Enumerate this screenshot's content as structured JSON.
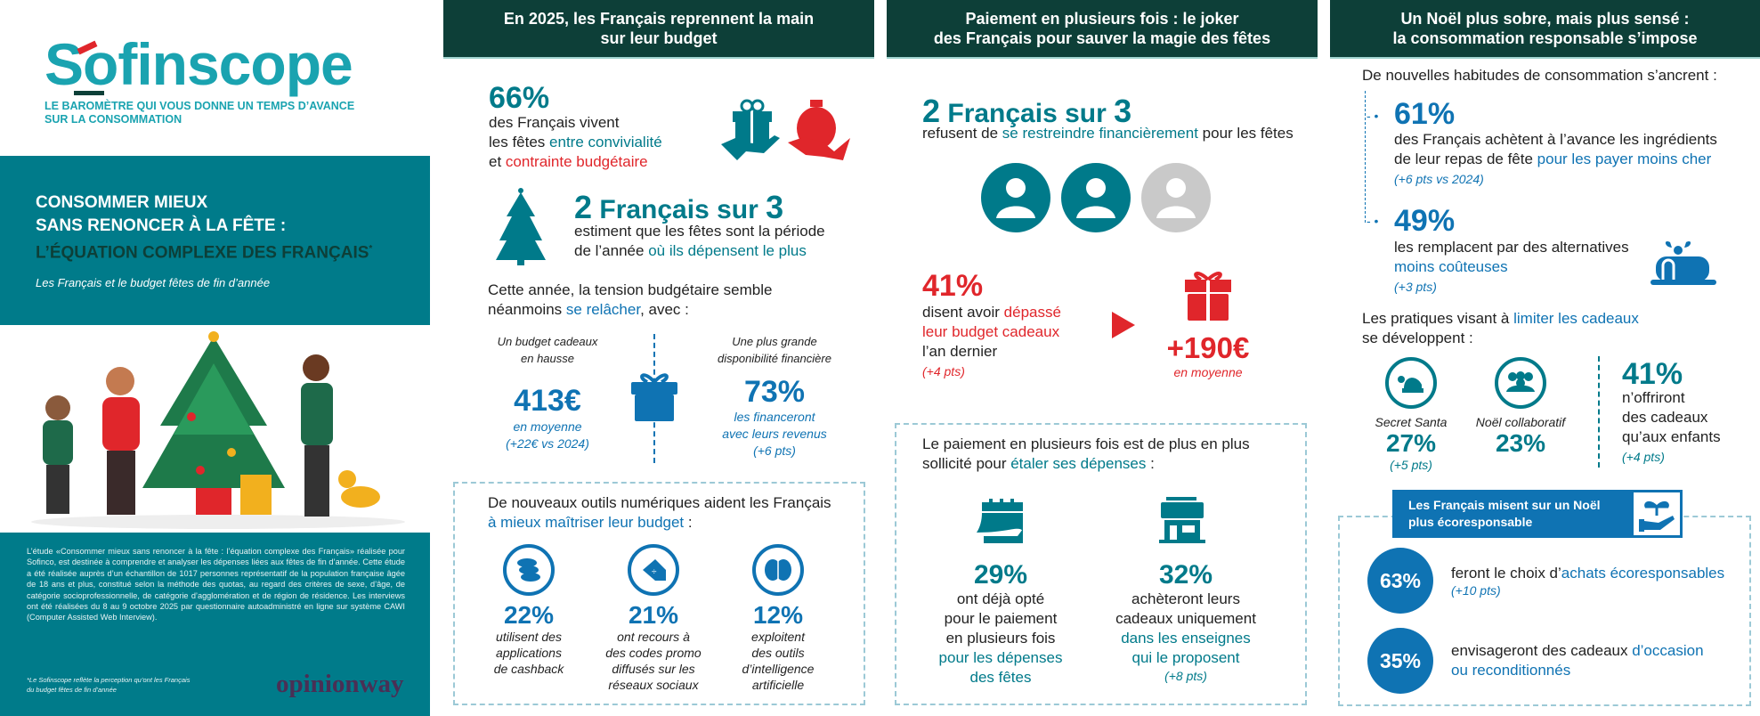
{
  "colors": {
    "dark_green": "#0d3f38",
    "teal": "#007a8a",
    "blue": "#0f73b3",
    "red": "#e0262b",
    "grey": "#c9c9c9",
    "opinionway": "#4a2f55"
  },
  "left": {
    "logo": "Sofinscope",
    "tagline": [
      "LE BAROMÈTRE QUI VOUS DONNE UN TEMPS D’AVANCE",
      "SUR LA CONSOMMATION"
    ],
    "title": [
      "CONSOMMER MIEUX",
      "SANS RENONCER À LA FÊTE :",
      "L’ÉQUATION COMPLEXE DES FRANÇAIS"
    ],
    "title_asterisk": "*",
    "subtitle": "Les Français et le budget fêtes de fin d’année",
    "method": "L’étude «Consommer mieux sans renoncer à la fête : l’équation complexe des Français» réalisée pour Sofinco, est destinée à comprendre et analyser les dépenses liées aux fêtes de fin d’année. Cette étude a été réalisée auprès d’un échantillon de 1017 personnes représentatif de la population française âgée de 18 ans et plus, constitué selon la méthode des quotas, au regard des critères de sexe, d’âge, de catégorie socioprofessionnelle, de catégorie d’agglomération et de région de résidence. Les interviews ont été réalisées du 8 au 9 octobre 2025 par questionnaire autoadministré en ligne sur système CAWI (Computer Assisted Web Interview).",
    "footnote": [
      "*Le Sofinscope reflète la perception qu’ont les Français",
      "du budget fêtes de fin d’année"
    ],
    "partner_logo": "opinionway"
  },
  "col2": {
    "header": [
      "En 2025, les Français reprennent la main",
      "sur leur budget"
    ],
    "s1": {
      "value": "66%",
      "l1": "des Français vivent",
      "l2a": "les fêtes ",
      "l2b": "entre convivialité",
      "l3a": "et ",
      "l3b": "contrainte budgétaire"
    },
    "s2": {
      "value_a": "2",
      "value_b": " Français sur ",
      "value_c": "3",
      "l1": "estiment que les fêtes sont la période",
      "l2a": "de l’année ",
      "l2b": "où ils dépensent le plus"
    },
    "intro": {
      "l1": "Cette année, la tension budgétaire semble",
      "l2a": "néanmoins ",
      "l2b": "se relâcher",
      "l2c": ", avec :"
    },
    "budget": {
      "label": [
        "Un budget cadeaux",
        "en hausse"
      ],
      "value": "413€",
      "desc": [
        "en moyenne",
        "(+22€ vs 2024)"
      ]
    },
    "dispo": {
      "label": [
        "Une plus grande",
        "disponibilité financière"
      ],
      "value": "73%",
      "desc": [
        "les financeront",
        "avec leurs revenus",
        "(+6 pts)"
      ]
    },
    "tools": {
      "title_a": "De nouveaux outils numériques aident les Français",
      "title_b": "à mieux maîtriser leur budget",
      "title_c": " :",
      "items": [
        {
          "icon": "coins-icon",
          "value": "22%",
          "desc": [
            "utilisent des",
            "applications",
            "de cashback"
          ]
        },
        {
          "icon": "promo-tag-icon",
          "value": "21%",
          "desc": [
            "ont recours à",
            "des codes promo",
            "diffusés sur les",
            "réseaux sociaux"
          ]
        },
        {
          "icon": "ai-brain-icon",
          "value": "12%",
          "desc": [
            "exploitent",
            "des outils",
            "d’intelligence",
            "artificielle"
          ]
        }
      ]
    }
  },
  "col3": {
    "header": [
      "Paiement en plusieurs fois : le joker",
      "des Français pour sauver la magie des fêtes"
    ],
    "s1": {
      "value_a": "2",
      "value_b": " Français sur ",
      "value_c": "3",
      "la": "refusent de ",
      "lb": "se restreindre financièrement",
      "lc": " pour les fêtes",
      "people_filled": 2,
      "people_total": 3
    },
    "s2": {
      "value": "41%",
      "l1a": "disent avoir ",
      "l1b": "dépassé",
      "l2": "leur budget cadeaux",
      "l3": "l’an dernier",
      "l4": "(+4 pts)",
      "amount": "+190€",
      "amount_desc": "en moyenne"
    },
    "box": {
      "title1": "Le paiement en plusieurs fois est de plus en plus",
      "title2a": "sollicité pour ",
      "title2b": "étaler ses dépenses",
      "title2c": " :",
      "items": [
        {
          "icon": "calendar-icon",
          "value": "29%",
          "dark": [
            "ont déjà opté",
            "pour le paiement",
            "en plusieurs fois"
          ],
          "hl": [
            "pour les dépenses",
            "des fêtes"
          ],
          "note": ""
        },
        {
          "icon": "store-icon",
          "value": "32%",
          "dark": [
            "achèteront leurs",
            "cadeaux uniquement"
          ],
          "hl": [
            "dans les enseignes",
            "qui le proposent"
          ],
          "note": "(+8 pts)"
        }
      ]
    }
  },
  "col4": {
    "header": [
      "Un Noël plus sobre, mais plus sensé :",
      "la consommation responsable s’impose"
    ],
    "intro": "De nouvelles habitudes de consommation s’ancrent :",
    "s1": {
      "value": "61%",
      "l1": "des Français achètent à l’avance les ingrédients",
      "l2a": "de leur repas de fête ",
      "l2b": "pour les payer moins cher",
      "note": "(+6 pts vs 2024)"
    },
    "s2": {
      "value": "49%",
      "l1": "les remplacent par des alternatives",
      "l2": "moins coûteuses",
      "note": "(+3 pts)"
    },
    "limit": {
      "l1a": "Les pratiques visant à ",
      "l1b": "limiter les cadeaux",
      "l2": "se développent :",
      "santa": {
        "label": "Secret Santa",
        "value": "27%",
        "note": "(+5 pts)"
      },
      "collab": {
        "label": "Noël collaboratif",
        "value": "23%"
      },
      "kids": {
        "value": "41%",
        "lines": [
          "n’offriront",
          "des cadeaux",
          "qu’aux enfants"
        ],
        "note": "(+4 pts)"
      }
    },
    "eco": {
      "banner": [
        "Les Français misent sur un Noël",
        "plus écoresponsable"
      ],
      "i1": {
        "value": "63%",
        "la": "feront le choix d’",
        "lb": "achats écoresponsables",
        "note": "(+10 pts)"
      },
      "i2": {
        "value": "35%",
        "la": "envisageront des cadeaux ",
        "lb": "d’occasion",
        "l2": "ou reconditionnés"
      }
    }
  }
}
